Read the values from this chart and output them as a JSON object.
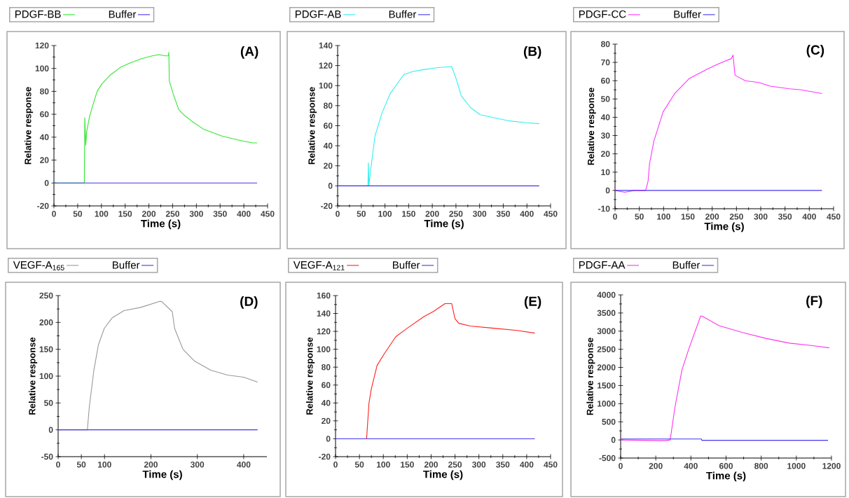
{
  "chart_data": [
    {
      "type": "line",
      "title": "(A)",
      "xlabel": "Time (s)",
      "ylabel": "Relative response",
      "xlim": [
        0,
        450
      ],
      "ylim": [
        -20,
        120
      ],
      "xticks": [
        0,
        50,
        100,
        150,
        200,
        250,
        300,
        350,
        400,
        450
      ],
      "yticks": [
        -20,
        0,
        20,
        40,
        60,
        80,
        100,
        120
      ],
      "legend": "top",
      "marker": "none",
      "line_style": "solid",
      "series": [
        {
          "name": "PDGF-BB",
          "color": "#33e633",
          "x": [
            0,
            64,
            65,
            67,
            69,
            75,
            82,
            91,
            100,
            118,
            140,
            162,
            185,
            207,
            221,
            235,
            241,
            242,
            243,
            251,
            263,
            275,
            290,
            315,
            354,
            394,
            418,
            428
          ],
          "values": [
            0,
            0,
            57,
            33,
            45,
            58,
            68,
            80,
            86,
            94,
            101,
            105,
            108.5,
            111,
            112,
            111,
            111,
            114,
            89,
            78,
            64,
            59,
            54,
            47,
            41,
            37,
            35,
            35
          ]
        },
        {
          "name": "Buffer",
          "color": "#4433ee",
          "x": [
            0,
            428
          ],
          "values": [
            0,
            0
          ]
        }
      ]
    },
    {
      "type": "line",
      "title": "(B)",
      "xlabel": "Time (s)",
      "ylabel": "Relative response",
      "xlim": [
        0,
        450
      ],
      "ylim": [
        -20,
        140
      ],
      "xticks": [
        0,
        50,
        100,
        150,
        200,
        250,
        300,
        350,
        400,
        450
      ],
      "yticks": [
        -20,
        0,
        20,
        40,
        60,
        80,
        100,
        120,
        140
      ],
      "legend": "top",
      "marker": "none",
      "line_style": "solid",
      "series": [
        {
          "name": "PDGF-AB",
          "color": "#33eeee",
          "x": [
            0,
            64,
            65,
            66,
            69,
            79,
            94,
            111,
            123,
            140,
            158,
            182,
            212,
            241,
            251,
            261,
            281,
            301,
            330,
            360,
            399,
            426
          ],
          "values": [
            0,
            0,
            23,
            0,
            13,
            50,
            73,
            92,
            100,
            111,
            114,
            116,
            118,
            119,
            106,
            90,
            78,
            71,
            68,
            65,
            63,
            62
          ]
        },
        {
          "name": "Buffer",
          "color": "#4433ee",
          "x": [
            0,
            426
          ],
          "values": [
            0,
            0
          ]
        }
      ]
    },
    {
      "type": "line",
      "title": "(C)",
      "xlabel": "Time (s)",
      "ylabel": "Relative response",
      "xlim": [
        0,
        450
      ],
      "ylim": [
        -10,
        80
      ],
      "xticks": [
        0,
        50,
        100,
        150,
        200,
        250,
        300,
        350,
        400,
        450
      ],
      "yticks": [
        -10,
        0,
        10,
        20,
        30,
        40,
        50,
        60,
        70,
        80
      ],
      "legend": "top",
      "marker": "none",
      "line_style": "solid",
      "series": [
        {
          "name": "PDGF-CC",
          "color": "#ff33ff",
          "x": [
            0,
            20,
            40,
            63,
            68,
            71,
            80,
            99,
            123,
            152,
            191,
            220,
            239,
            243,
            247,
            268,
            296,
            320,
            359,
            383,
            426
          ],
          "values": [
            0,
            -1,
            0,
            0,
            5,
            14.5,
            27,
            43,
            53,
            61,
            66.5,
            70,
            72,
            74,
            63,
            60,
            59,
            57,
            55.6,
            55,
            53
          ]
        },
        {
          "name": "Buffer",
          "color": "#4433ee",
          "x": [
            0,
            426
          ],
          "values": [
            0,
            0
          ]
        }
      ]
    },
    {
      "type": "line",
      "title": "(D)",
      "xlabel": "Time (s)",
      "ylabel": "Relative response",
      "xlim": [
        0,
        450
      ],
      "ylim": [
        -50,
        250
      ],
      "xticks": [
        0,
        50,
        100,
        200,
        300,
        400
      ],
      "yticks": [
        -50,
        0,
        50,
        100,
        150,
        200,
        250
      ],
      "legend": "top",
      "marker": "none",
      "line_style": "solid",
      "series": [
        {
          "name": "VEGF-A$_{165}$",
          "color": "#999999",
          "x": [
            0,
            63,
            67,
            77,
            87,
            99.5,
            117,
            142,
            178,
            218,
            223,
            246,
            251,
            269,
            294,
            329,
            365,
            400,
            430
          ],
          "values": [
            0,
            0,
            41,
            111,
            159,
            189,
            209,
            222,
            228,
            239,
            239,
            220,
            189,
            150,
            128,
            111,
            102,
            98,
            89
          ]
        },
        {
          "name": "Buffer",
          "color": "#4433ee",
          "x": [
            0,
            430
          ],
          "values": [
            0,
            0
          ]
        }
      ]
    },
    {
      "type": "line",
      "title": "(E)",
      "xlabel": "Time (s)",
      "ylabel": "Relative response",
      "xlim": [
        0,
        450
      ],
      "ylim": [
        -20,
        160
      ],
      "xticks": [
        0,
        50,
        100,
        150,
        200,
        250,
        300,
        350,
        400,
        450
      ],
      "yticks": [
        -20,
        0,
        20,
        40,
        60,
        80,
        100,
        120,
        140,
        160
      ],
      "legend": "top",
      "marker": "none",
      "line_style": "solid",
      "series": [
        {
          "name": "VEGF-A$_{121}$",
          "color": "#ff2020",
          "x": [
            0,
            65,
            70,
            75,
            87,
            102,
            126,
            150,
            185,
            204,
            229,
            243,
            250,
            258,
            282,
            331,
            380,
            417
          ],
          "values": [
            0,
            0,
            40,
            56,
            82,
            95,
            114,
            123.5,
            136.5,
            142,
            151,
            151,
            134,
            129,
            126,
            123.5,
            121,
            118
          ]
        },
        {
          "name": "Buffer",
          "color": "#4433ee",
          "x": [
            0,
            417
          ],
          "values": [
            0,
            0
          ]
        }
      ]
    },
    {
      "type": "line",
      "title": "(F)",
      "xlabel": "Time (s)",
      "ylabel": "Relative response",
      "xlim": [
        0,
        1200
      ],
      "ylim": [
        -500,
        4000
      ],
      "xticks": [
        0,
        200,
        400,
        600,
        800,
        1000,
        1200
      ],
      "yticks": [
        -500,
        0,
        500,
        1000,
        1500,
        2000,
        2500,
        3000,
        3500,
        4000
      ],
      "legend": "top",
      "marker": "none",
      "line_style": "solid",
      "series": [
        {
          "name": "PDGF-AA",
          "color": "#ff33ee",
          "x": [
            0,
            250,
            282,
            309,
            349,
            388,
            455,
            461,
            561,
            694,
            827,
            960,
            1094,
            1187
          ],
          "values": [
            0,
            -20,
            0,
            900,
            1930,
            2510,
            3410,
            3420,
            3150,
            2960,
            2800,
            2670,
            2600,
            2540
          ]
        },
        {
          "name": "Buffer",
          "color": "#4433ee",
          "x": [
            0,
            460,
            462,
            1180
          ],
          "values": [
            25,
            25,
            -10,
            -10
          ]
        }
      ]
    }
  ]
}
